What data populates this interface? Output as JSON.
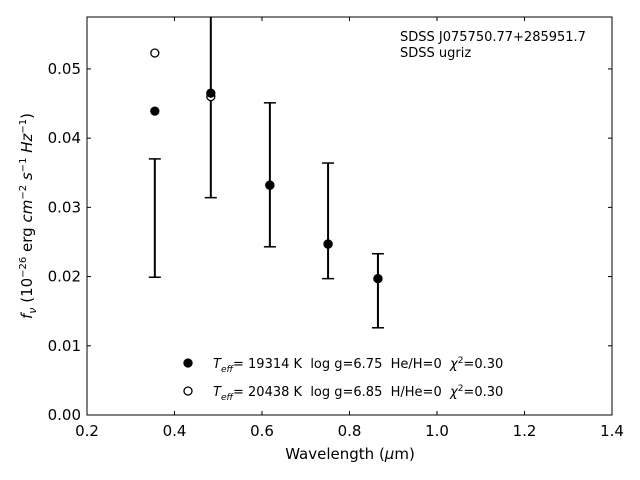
{
  "chart_data": {
    "type": "scatter",
    "title": "",
    "annotation": [
      "SDSS J075750.77+285951.7",
      "SDSS ugriz"
    ],
    "xlabel": "Wavelength (μm)",
    "ylabel": "f_ν (10^-26 erg cm^-2 s^-1 Hz^-1)",
    "xlim": [
      0.2,
      1.4
    ],
    "ylim": [
      0.0,
      0.0575
    ],
    "xticks": [
      "0.2",
      "0.4",
      "0.6",
      "0.8",
      "1.0",
      "1.2",
      "1.4"
    ],
    "yticks": [
      "0.00",
      "0.01",
      "0.02",
      "0.03",
      "0.04",
      "0.05"
    ],
    "grid": false,
    "legend_position": "bottom-center",
    "errorbars": {
      "x": [
        0.355,
        0.483,
        0.618,
        0.751,
        0.865
      ],
      "lower": [
        0.0199,
        0.0314,
        0.0243,
        0.0197,
        0.0126
      ],
      "upper": [
        0.037,
        0.06,
        0.0451,
        0.0364,
        0.0233
      ]
    },
    "series": [
      {
        "name": "T_eff= 19314 K  log g=6.75  He/H=0  χ²=0.30",
        "marker": "filled-circle",
        "x": [
          0.355,
          0.483,
          0.618,
          0.751,
          0.865
        ],
        "y": [
          0.0439,
          0.0465,
          0.0332,
          0.0247,
          0.0197
        ]
      },
      {
        "name": "T_eff= 20438 K  log g=6.85  H/He=0  χ²=0.30",
        "marker": "open-circle",
        "x": [
          0.355,
          0.483,
          0.618,
          0.751,
          0.865
        ],
        "y": [
          0.0523,
          0.046,
          0.0332,
          0.0247,
          0.0197
        ]
      }
    ],
    "legend": [
      {
        "teff": "19314 K",
        "rest": "log g=6.75  He/H=0",
        "chi": "=0.30"
      },
      {
        "teff": "20438 K",
        "rest": "log g=6.85  H/He=0",
        "chi": "=0.30"
      }
    ]
  }
}
